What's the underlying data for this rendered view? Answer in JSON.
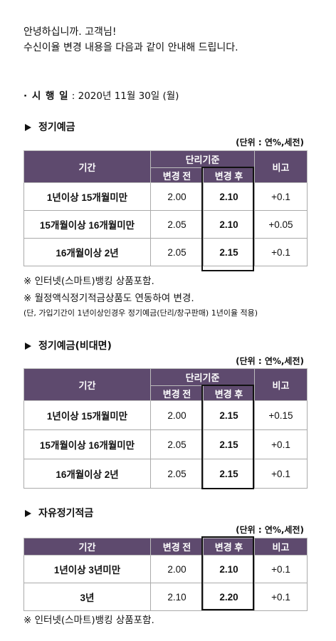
{
  "greeting": {
    "line1": "안녕하십니까. 고객님!",
    "line2": "수신이율 변경 내용을 다음과 같이 안내해 드립니다."
  },
  "effective": {
    "label": "· 시 행 일",
    "value": " : 2020년 11월 30일 (월)"
  },
  "headers": {
    "period": "기간",
    "basis": "단리기준",
    "before": "변경 전",
    "after": "변경 후",
    "note": "비고"
  },
  "unit_label": "(단위 : 연%,세전)",
  "sections": [
    {
      "title": "정기예금",
      "rows": [
        {
          "period": "1년이상 15개월미만",
          "before": "2.00",
          "after": "2.10",
          "note": "+0.1"
        },
        {
          "period": "15개월이상 16개월미만",
          "before": "2.05",
          "after": "2.10",
          "note": "+0.05"
        },
        {
          "period": "16개월이상 2년",
          "before": "2.05",
          "after": "2.15",
          "note": "+0.1"
        }
      ],
      "notes": [
        "※ 인터넷(스마트)뱅킹 상품포함.",
        "※ 월정액식정기적금상품도 연동하여 변경.",
        "(단, 가입기간이 1년이상인경우 정기예금(단리/창구판매) 1년이율 적용)"
      ]
    },
    {
      "title": "정기예금(비대면)",
      "rows": [
        {
          "period": "1년이상 15개월미만",
          "before": "2.00",
          "after": "2.15",
          "note": "+0.15"
        },
        {
          "period": "15개월이상 16개월미만",
          "before": "2.05",
          "after": "2.15",
          "note": "+0.1"
        },
        {
          "period": "16개월이상 2년",
          "before": "2.05",
          "after": "2.15",
          "note": "+0.1"
        }
      ]
    },
    {
      "title": "자유정기적금",
      "rows": [
        {
          "period": "1년이상 3년미만",
          "before": "2.00",
          "after": "2.10",
          "note": "+0.1"
        },
        {
          "period": "3년",
          "before": "2.10",
          "after": "2.20",
          "note": "+0.1"
        }
      ],
      "notes": [
        "※ 인터넷(스마트)뱅킹 상품포함."
      ]
    }
  ]
}
